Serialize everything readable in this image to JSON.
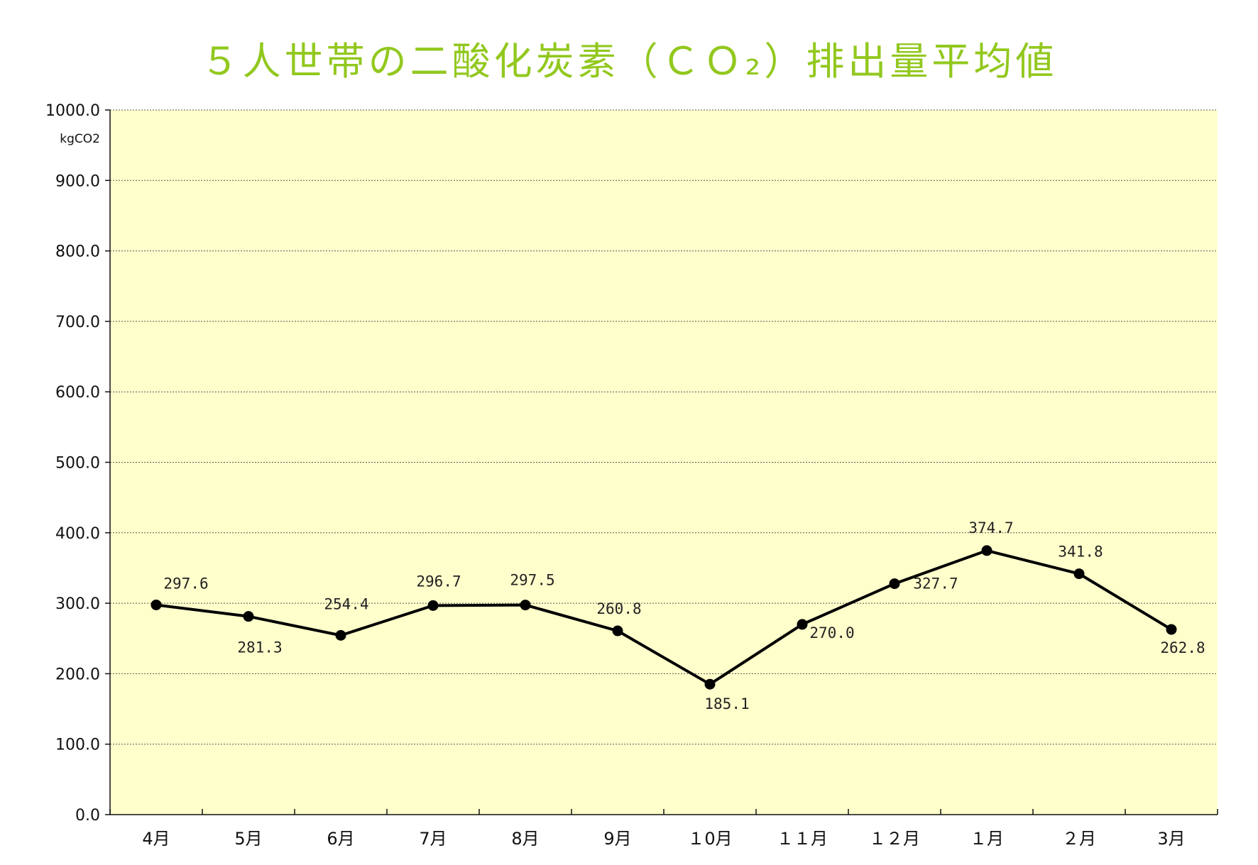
{
  "chart_data": {
    "type": "line",
    "title": "５人世帯の二酸化炭素（ＣＯ₂）排出量平均値",
    "ylabel": "kgCO2",
    "categories": [
      "4月",
      "5月",
      "6月",
      "7月",
      "8月",
      "9月",
      "１0月",
      "１１月",
      "１２月",
      "１月",
      "２月",
      "3月"
    ],
    "values": [
      297.6,
      281.3,
      254.4,
      296.7,
      297.5,
      260.8,
      185.1,
      270.0,
      327.7,
      374.7,
      341.8,
      262.8
    ],
    "data_labels": [
      "297.6",
      "281.3",
      "254.4",
      "296.7",
      "297.5",
      "260.8",
      "185.1",
      "270.0",
      "327.7",
      "374.7",
      "341.8",
      "262.8"
    ],
    "ylim": [
      0,
      1000
    ],
    "yticks": [
      "0.0",
      "100.0",
      "200.0",
      "300.0",
      "400.0",
      "500.0",
      "600.0",
      "700.0",
      "800.0",
      "900.0",
      "1000.0"
    ],
    "grid": true,
    "legend": "none",
    "colors": {
      "title": "#92c81e",
      "plot_background": "#ffffcc",
      "line": "#000000"
    }
  }
}
